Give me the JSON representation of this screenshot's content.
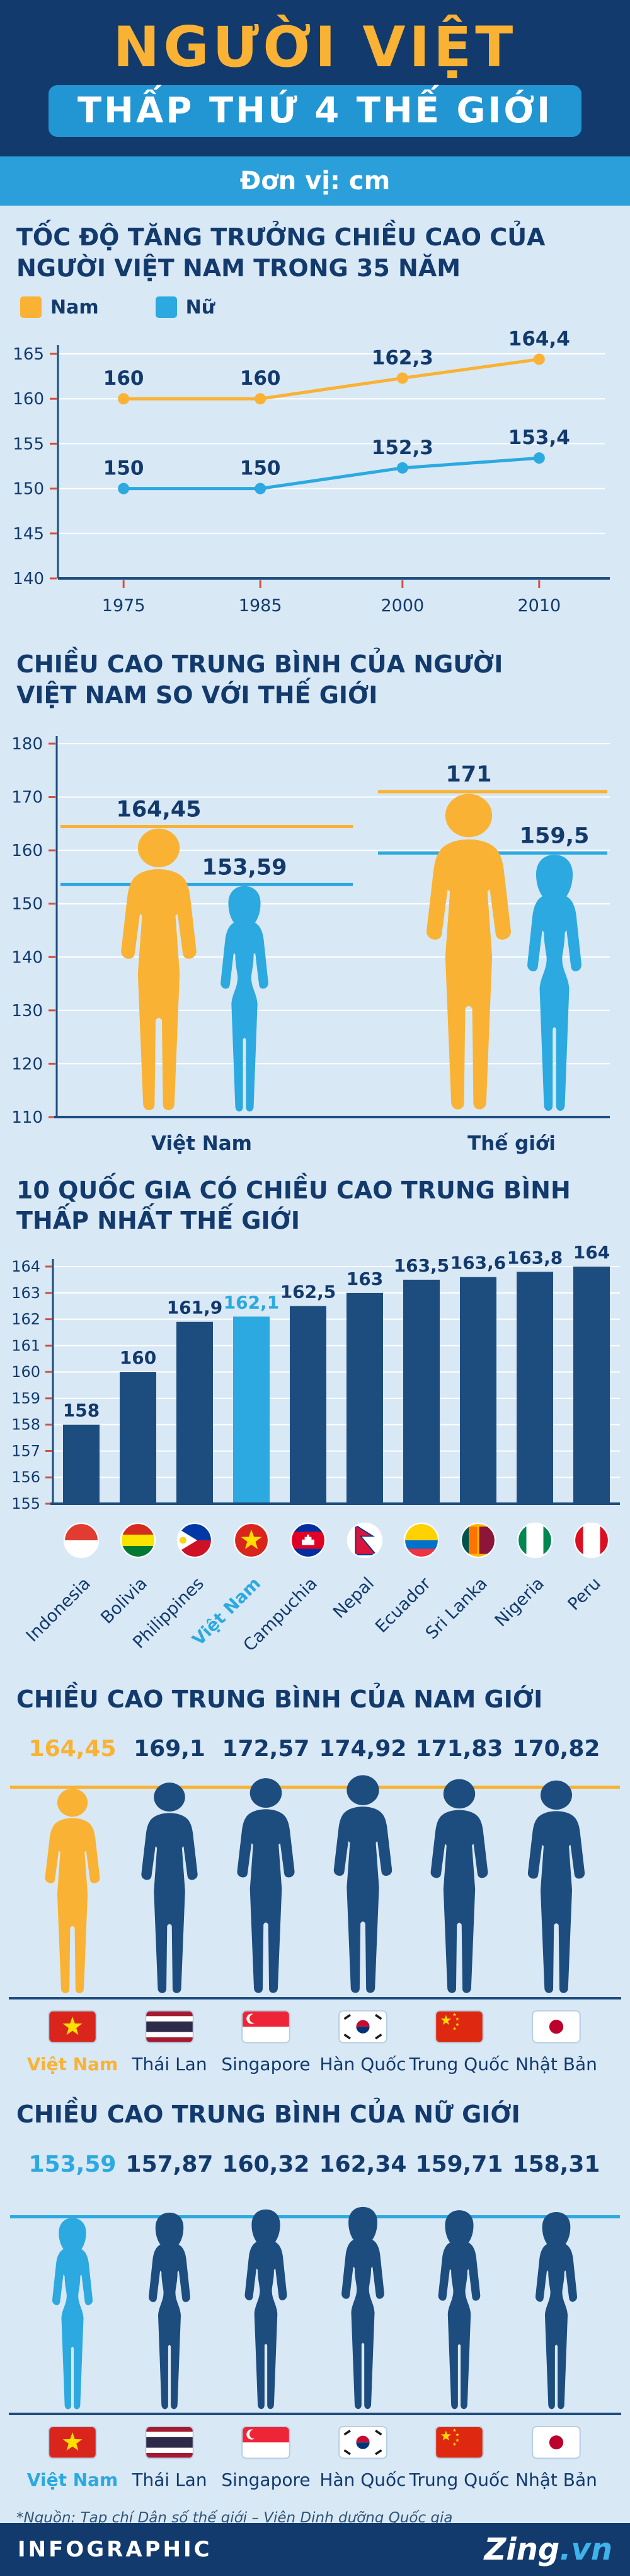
{
  "colors": {
    "navy_text": "#123a6d",
    "figure": "#1d4d7f",
    "axis": "#1d4d7f",
    "yellow": "#f9b233",
    "blue": "#2ba9e0",
    "tick": "#d4503c",
    "grid": "#ffffff",
    "background": "#d8e8f5",
    "header_bg": "#123a6d",
    "pill_bg": "#2196d3",
    "unit_bar_bg": "#2b9fd9"
  },
  "header": {
    "title": "NGƯỜI VIỆT",
    "subtitle": "THẤP THỨ 4 THẾ GIỚI",
    "unit_label": "Đơn vị: cm"
  },
  "sections": {
    "growth": {
      "title_lines": [
        "TỐC ĐỘ TĂNG TRƯỞNG CHIỀU CAO CỦA",
        "NGƯỜI VIỆT NAM TRONG 35 NĂM"
      ]
    },
    "compare": {
      "title_lines": [
        "CHIỀU CAO TRUNG BÌNH CỦA NGƯỜI",
        "VIỆT NAM SO VỚI THẾ GIỚI"
      ]
    },
    "lowest": {
      "title_lines": [
        "10 QUỐC GIA CÓ CHIỀU CAO TRUNG BÌNH",
        "THẤP NHẤT THẾ GIỚI"
      ]
    },
    "men": {
      "title_lines": [
        "CHIỀU CAO TRUNG BÌNH CỦA NAM GIỚI"
      ]
    },
    "women": {
      "title_lines": [
        "CHIỀU CAO TRUNG BÌNH CỦA NỮ GIỚI"
      ]
    }
  },
  "footer": {
    "source": "*Nguồn: Tạp chí Dân số thế giới – Viện Dinh dưỡng Quốc gia",
    "brand_left": "INFOGRAPHIC",
    "brand_name": "Zing",
    "brand_tld": ".vn"
  },
  "chart_data": [
    {
      "id": "growth",
      "type": "line",
      "title": "TỐC ĐỘ TĂNG TRƯỞNG CHIỀU CAO CỦA NGƯỜI VIỆT NAM TRONG 35 NĂM",
      "x": [
        "1975",
        "1985",
        "2000",
        "2010"
      ],
      "series": [
        {
          "name": "Nam",
          "color": "#f9b233",
          "values": [
            160,
            160,
            162.3,
            164.4
          ],
          "labels": [
            "160",
            "160",
            "162,3",
            "164,4"
          ]
        },
        {
          "name": "Nữ",
          "color": "#2ba9e0",
          "values": [
            150,
            150,
            152.3,
            153.4
          ],
          "labels": [
            "150",
            "150",
            "152,3",
            "153,4"
          ]
        }
      ],
      "ylim": [
        140,
        165
      ],
      "ytick_step": 5,
      "grid": true,
      "legend_position": "top-left",
      "unit": "cm"
    },
    {
      "id": "compare",
      "type": "pictogram",
      "title": "CHIỀU CAO TRUNG BÌNH CỦA NGƯỜI VIỆT NAM SO VỚI THẾ GIỚI",
      "groups": [
        {
          "label": "Việt Nam",
          "male": {
            "value": 164.45,
            "label": "164,45"
          },
          "female": {
            "value": 153.59,
            "label": "153,59"
          }
        },
        {
          "label": "Thế giới",
          "male": {
            "value": 171,
            "label": "171"
          },
          "female": {
            "value": 159.5,
            "label": "159,5"
          }
        }
      ],
      "ylim": [
        110,
        180
      ],
      "ytick_step": 10,
      "grid": true,
      "unit": "cm"
    },
    {
      "id": "lowest",
      "type": "bar",
      "title": "10 QUỐC GIA CÓ CHIỀU CAO TRUNG BÌNH THẤP NHẤT THẾ GIỚI",
      "categories": [
        "Indonesia",
        "Bolivia",
        "Philippines",
        "Việt Nam",
        "Campuchia",
        "Nepal",
        "Ecuador",
        "Sri Lanka",
        "Nigeria",
        "Peru"
      ],
      "values": [
        158,
        160,
        161.9,
        162.1,
        162.5,
        163,
        163.5,
        163.6,
        163.8,
        164
      ],
      "labels": [
        "158",
        "160",
        "161,9",
        "162,1",
        "162,5",
        "163",
        "163,5",
        "163,6",
        "163,8",
        "164"
      ],
      "flags": [
        "flag-indonesia",
        "flag-bolivia",
        "flag-philippines",
        "flag-vietnam",
        "flag-cambodia",
        "flag-nepal",
        "flag-ecuador",
        "flag-srilanka",
        "flag-nigeria",
        "flag-peru"
      ],
      "highlight_index": 3,
      "ylim": [
        155,
        164
      ],
      "ytick_step": 1,
      "grid": true,
      "unit": "cm"
    },
    {
      "id": "men",
      "type": "pictogram-row",
      "title": "CHIỀU CAO TRUNG BÌNH CỦA NAM GIỚI",
      "gender": "male",
      "categories": [
        "Việt Nam",
        "Thái Lan",
        "Singapore",
        "Hàn Quốc",
        "Trung Quốc",
        "Nhật Bản"
      ],
      "values": [
        164.45,
        169.1,
        172.57,
        174.92,
        171.83,
        170.82
      ],
      "labels": [
        "164,45",
        "169,1",
        "172,57",
        "174,92",
        "171,83",
        "170,82"
      ],
      "flags": [
        "flag-vietnam",
        "flag-thailand",
        "flag-singapore",
        "flag-southkorea",
        "flag-china",
        "flag-japan"
      ],
      "highlight_index": 0,
      "highlight_color": "#f9b233",
      "unit": "cm"
    },
    {
      "id": "women",
      "type": "pictogram-row",
      "title": "CHIỀU CAO TRUNG BÌNH CỦA NỮ GIỚI",
      "gender": "female",
      "categories": [
        "Việt Nam",
        "Thái Lan",
        "Singapore",
        "Hàn Quốc",
        "Trung Quốc",
        "Nhật Bản"
      ],
      "values": [
        153.59,
        157.87,
        160.32,
        162.34,
        159.71,
        158.31
      ],
      "labels": [
        "153,59",
        "157,87",
        "160,32",
        "162,34",
        "159,71",
        "158,31"
      ],
      "flags": [
        "flag-vietnam",
        "flag-thailand",
        "flag-singapore",
        "flag-southkorea",
        "flag-china",
        "flag-japan"
      ],
      "highlight_index": 0,
      "highlight_color": "#2ba9e0",
      "unit": "cm"
    }
  ]
}
